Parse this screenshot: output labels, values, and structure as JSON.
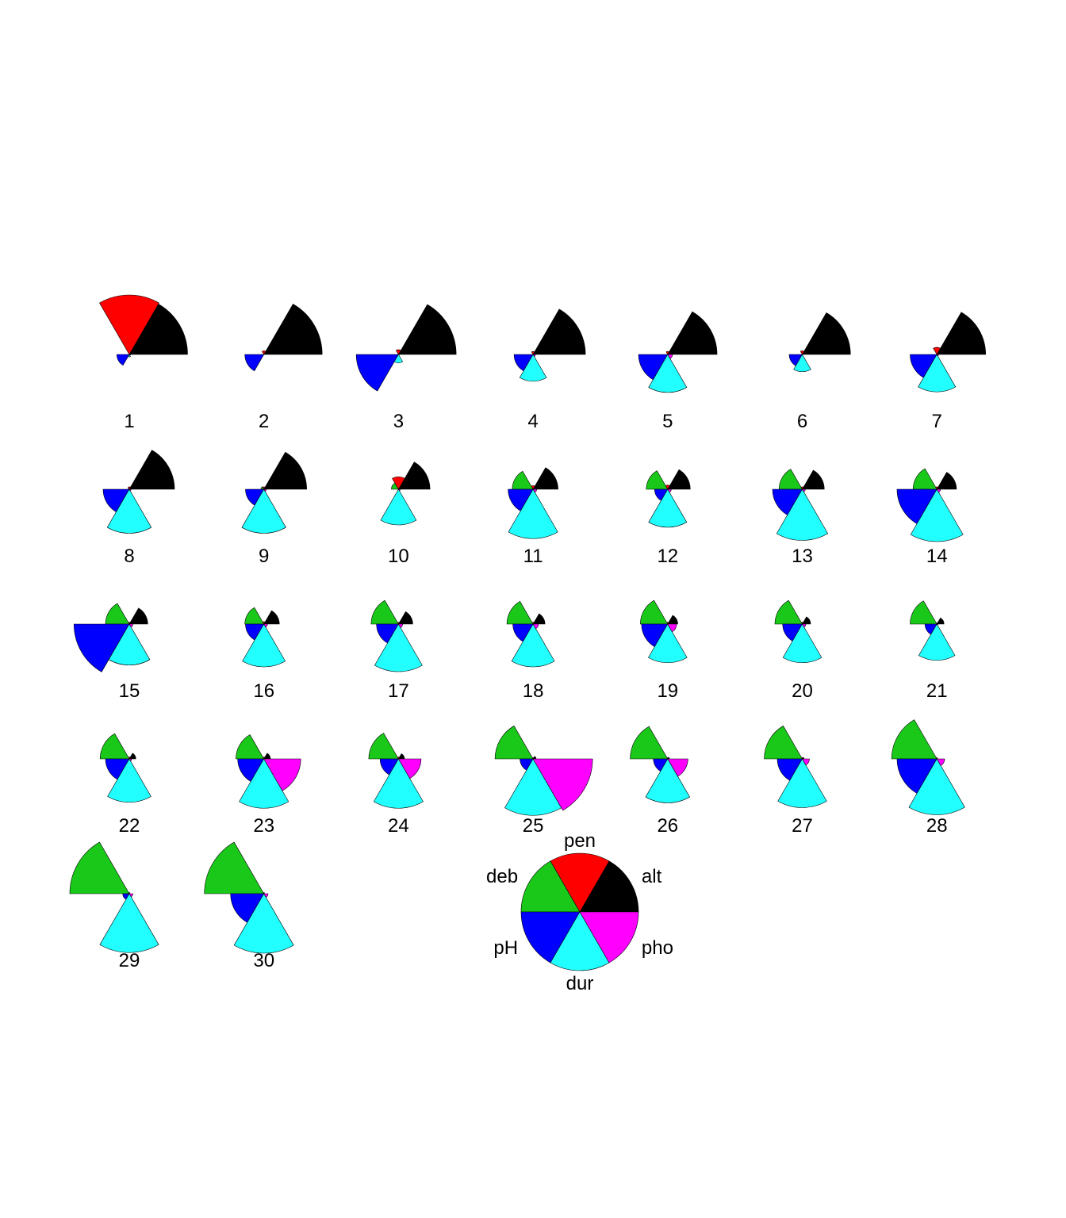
{
  "chart_data": {
    "type": "segment-star",
    "variables": [
      "alt",
      "pen",
      "deb",
      "pH",
      "dur",
      "pho"
    ],
    "colors": {
      "alt": "#000000",
      "pen": "#ff0000",
      "deb": "#19c819",
      "pH": "#0000ff",
      "dur": "#22ffff",
      "pho": "#ff00ff"
    },
    "units": [
      "1",
      "2",
      "3",
      "4",
      "5",
      "6",
      "7",
      "8",
      "9",
      "10",
      "11",
      "12",
      "13",
      "14",
      "15",
      "16",
      "17",
      "18",
      "19",
      "20",
      "21",
      "22",
      "23",
      "24",
      "25",
      "26",
      "27",
      "28",
      "29",
      "30"
    ],
    "values": [
      [
        0.98,
        1.0,
        0.0,
        0.21,
        0.04,
        0.02
      ],
      [
        0.98,
        0.06,
        0.0,
        0.32,
        0.0,
        0.0
      ],
      [
        0.97,
        0.08,
        0.0,
        0.71,
        0.14,
        0.01
      ],
      [
        0.88,
        0.05,
        0.0,
        0.32,
        0.45,
        0.04
      ],
      [
        0.83,
        0.05,
        0.0,
        0.49,
        0.64,
        0.08
      ],
      [
        0.81,
        0.06,
        0.0,
        0.22,
        0.29,
        0.0
      ],
      [
        0.82,
        0.12,
        0.01,
        0.45,
        0.63,
        0.03
      ],
      [
        0.76,
        0.04,
        0.02,
        0.44,
        0.74,
        0.03
      ],
      [
        0.72,
        0.04,
        0.05,
        0.31,
        0.74,
        0.04
      ],
      [
        0.53,
        0.21,
        0.12,
        0.0,
        0.6,
        0.03
      ],
      [
        0.42,
        0.06,
        0.35,
        0.42,
        0.83,
        0.06
      ],
      [
        0.38,
        0.07,
        0.36,
        0.22,
        0.64,
        0.06
      ],
      [
        0.37,
        0.04,
        0.39,
        0.5,
        0.86,
        0.05
      ],
      [
        0.33,
        0.04,
        0.4,
        0.67,
        0.88,
        0.06
      ],
      [
        0.31,
        0.03,
        0.4,
        0.93,
        0.69,
        0.06
      ],
      [
        0.26,
        0.04,
        0.32,
        0.31,
        0.72,
        0.06
      ],
      [
        0.24,
        0.03,
        0.46,
        0.37,
        0.8,
        0.07
      ],
      [
        0.2,
        0.03,
        0.44,
        0.34,
        0.72,
        0.09
      ],
      [
        0.17,
        0.03,
        0.46,
        0.44,
        0.65,
        0.15
      ],
      [
        0.14,
        0.03,
        0.46,
        0.33,
        0.65,
        0.06
      ],
      [
        0.12,
        0.02,
        0.45,
        0.2,
        0.61,
        0.02
      ],
      [
        0.11,
        0.03,
        0.49,
        0.4,
        0.73,
        0.04
      ],
      [
        0.11,
        0.03,
        0.47,
        0.44,
        0.83,
        0.62
      ],
      [
        0.1,
        0.03,
        0.5,
        0.31,
        0.83,
        0.38
      ],
      [
        0.05,
        0.02,
        0.64,
        0.22,
        0.95,
        1.0
      ],
      [
        0.03,
        0.02,
        0.63,
        0.24,
        0.74,
        0.34
      ],
      [
        0.03,
        0.02,
        0.64,
        0.42,
        0.82,
        0.12
      ],
      [
        0.0,
        0.02,
        0.76,
        0.67,
        0.94,
        0.13
      ],
      [
        0.0,
        0.02,
        1.0,
        0.11,
        0.99,
        0.06
      ],
      [
        0.0,
        0.02,
        1.0,
        0.56,
        1.0,
        0.07
      ]
    ],
    "key_labels": [
      "alt",
      "pen",
      "deb",
      "pH",
      "dur",
      "pho"
    ]
  }
}
